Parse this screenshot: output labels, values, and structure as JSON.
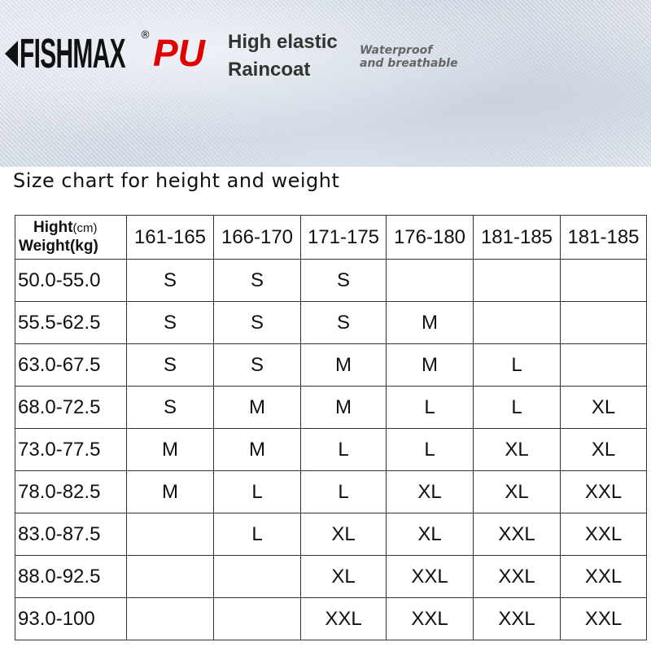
{
  "banner": {
    "brand": "FISHMAX",
    "registered": "®",
    "material": "PU",
    "line1": "High elastic",
    "line2": "Raincoat",
    "tag1": "Waterproof",
    "tag2": "and breathable"
  },
  "title": "Size chart for height and weight",
  "table": {
    "corner_height": "Hight",
    "corner_height_unit": "(cm)",
    "corner_weight": "Weight(kg)",
    "heights": [
      "161-165",
      "166-170",
      "171-175",
      "176-180",
      "181-185",
      "181-185"
    ],
    "rows": [
      {
        "weight": "50.0-55.0",
        "sizes": [
          "S",
          "S",
          "S",
          "",
          "",
          ""
        ]
      },
      {
        "weight": "55.5-62.5",
        "sizes": [
          "S",
          "S",
          "S",
          "M",
          "",
          ""
        ]
      },
      {
        "weight": "63.0-67.5",
        "sizes": [
          "S",
          "S",
          "M",
          "M",
          "L",
          ""
        ]
      },
      {
        "weight": "68.0-72.5",
        "sizes": [
          "S",
          "M",
          "M",
          "L",
          "L",
          "XL"
        ]
      },
      {
        "weight": "73.0-77.5",
        "sizes": [
          "M",
          "M",
          "L",
          "L",
          "XL",
          "XL"
        ]
      },
      {
        "weight": "78.0-82.5",
        "sizes": [
          "M",
          "L",
          "L",
          "XL",
          "XL",
          "XXL"
        ]
      },
      {
        "weight": "83.0-87.5",
        "sizes": [
          "",
          "L",
          "XL",
          "XL",
          "XXL",
          "XXL"
        ]
      },
      {
        "weight": "88.0-92.5",
        "sizes": [
          "",
          "",
          "XL",
          "XXL",
          "XXL",
          "XXL"
        ]
      },
      {
        "weight": "93.0-100",
        "sizes": [
          "",
          "",
          "XXL",
          "XXL",
          "XXL",
          "XXL"
        ]
      }
    ]
  }
}
